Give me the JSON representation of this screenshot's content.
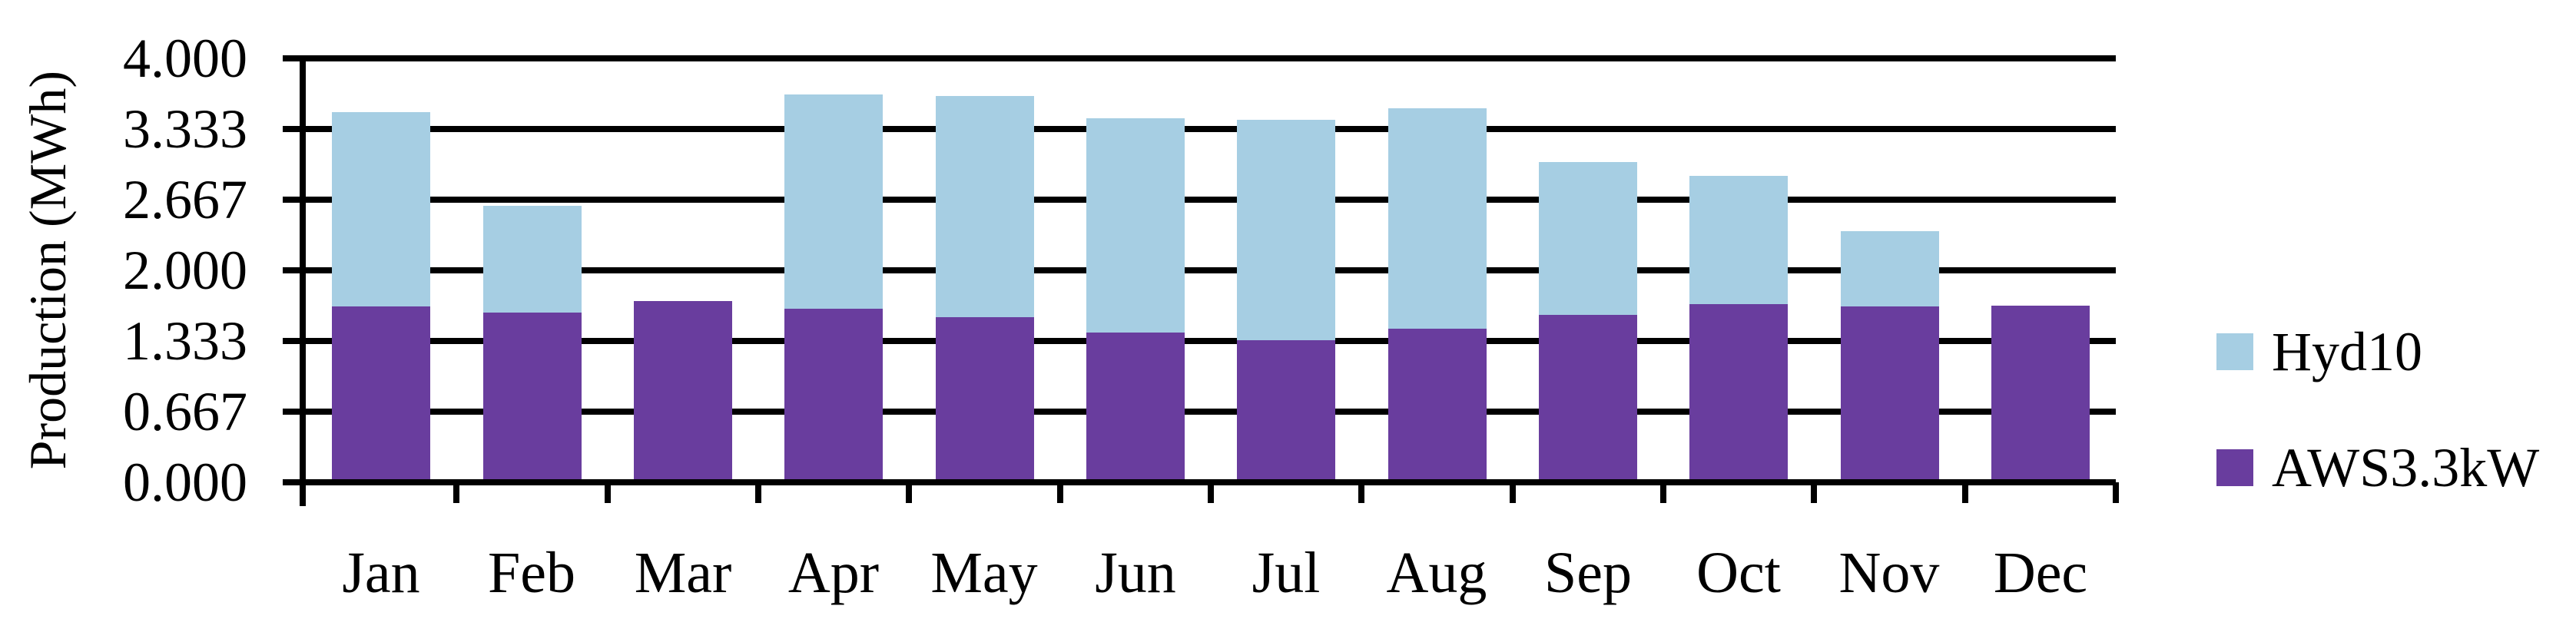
{
  "chart_data": {
    "type": "bar",
    "stacked": true,
    "title": "",
    "xlabel": "",
    "ylabel": "Production (MWh)",
    "categories": [
      "Jan",
      "Feb",
      "Mar",
      "Apr",
      "May",
      "Jun",
      "Jul",
      "Aug",
      "Sep",
      "Oct",
      "Nov",
      "Dec"
    ],
    "series": [
      {
        "name": "AWS3.3kW",
        "color": "#693d9e",
        "values": [
          1.66,
          1.6,
          1.71,
          1.64,
          1.56,
          1.41,
          1.34,
          1.45,
          1.58,
          1.68,
          1.66,
          1.67
        ]
      },
      {
        "name": "Hyd10",
        "color": "#a6cee3",
        "values": [
          1.83,
          1.01,
          0.0,
          2.02,
          2.09,
          2.02,
          2.08,
          2.08,
          1.44,
          1.21,
          0.71,
          0.0
        ]
      }
    ],
    "totals": [
      3.49,
      2.61,
      1.71,
      3.66,
      3.65,
      3.43,
      3.42,
      3.53,
      3.02,
      2.89,
      2.37,
      1.67
    ],
    "ylim": [
      0,
      4
    ],
    "ytick_step": 0.667,
    "ytick_labels": [
      "0.000",
      "0.667",
      "1.333",
      "2.000",
      "2.667",
      "3.333",
      "4.000"
    ],
    "grid": true,
    "legend_position": "right",
    "legend": [
      {
        "label": "Hyd10",
        "color": "#a6cee3"
      },
      {
        "label": "AWS3.3kW",
        "color": "#693d9e"
      }
    ]
  }
}
